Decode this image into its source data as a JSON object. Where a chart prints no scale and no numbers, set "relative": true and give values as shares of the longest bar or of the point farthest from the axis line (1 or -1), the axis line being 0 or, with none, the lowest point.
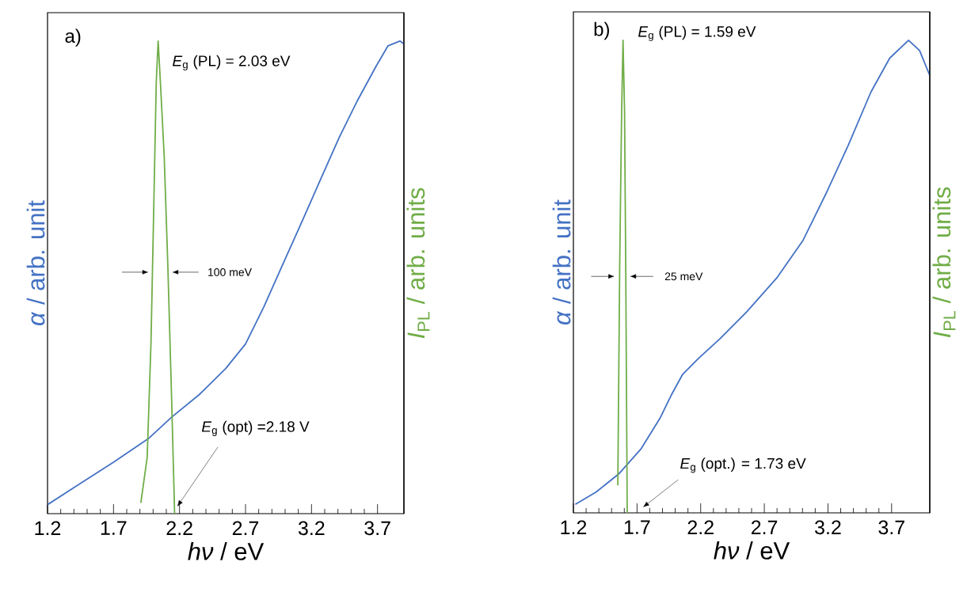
{
  "chart_data": [
    {
      "type": "line",
      "title": "a)",
      "xlabel": "*hν* / eV",
      "ylabel": "*α* / arb. unit",
      "y2label": "*I*$_{PL}$ / arb. units",
      "relative": true,
      "xlim": [
        1.2,
        3.9
      ],
      "xticks": [
        1.2,
        1.7,
        2.2,
        2.7,
        3.2,
        3.7
      ],
      "series": [
        {
          "color": "#4472c4",
          "x": [
            1.2,
            1.41,
            1.7,
            1.97,
            2.14,
            2.35,
            2.55,
            2.7,
            2.84,
            2.98,
            3.12,
            3.27,
            3.41,
            3.55,
            3.69,
            3.78,
            3.87,
            3.9
          ],
          "values": [
            0.019,
            0.057,
            0.109,
            0.16,
            0.204,
            0.252,
            0.307,
            0.359,
            0.438,
            0.526,
            0.613,
            0.708,
            0.796,
            0.875,
            0.947,
            0.99,
            1.0,
            0.994
          ]
        },
        {
          "color": "#70ad47",
          "axis": "y2",
          "x": [
            1.907,
            1.955,
            1.984,
            2.007,
            2.024,
            2.038,
            2.055,
            2.084,
            2.112,
            2.14,
            2.163
          ],
          "values": [
            0.023,
            0.119,
            0.363,
            0.678,
            0.914,
            1.0,
            0.914,
            0.756,
            0.52,
            0.245,
            0.0
          ]
        }
      ],
      "annotations": [
        "*E*$_{g}$ (PL) = 2.03 eV",
        "100 meV",
        "*E*$_{g}$ (opt) =2.18 V"
      ]
    },
    {
      "type": "line",
      "title": "b)",
      "xlabel": "*hν* / eV",
      "ylabel": "*α* / arb. unit",
      "y2label": "*I*$_{PL}$ / arb. units",
      "relative": true,
      "xlim": [
        1.2,
        4.0
      ],
      "xticks": [
        1.2,
        1.7,
        2.2,
        2.7,
        3.2,
        3.7
      ],
      "series": [
        {
          "color": "#4472c4",
          "x": [
            1.215,
            1.378,
            1.555,
            1.733,
            1.88,
            1.969,
            2.058,
            2.176,
            2.354,
            2.561,
            2.798,
            3.005,
            3.182,
            3.36,
            3.537,
            3.685,
            3.833,
            3.92,
            3.999
          ],
          "values": [
            0.018,
            0.044,
            0.082,
            0.136,
            0.2,
            0.249,
            0.293,
            0.325,
            0.369,
            0.425,
            0.497,
            0.577,
            0.674,
            0.778,
            0.89,
            0.962,
            1.0,
            0.978,
            0.926
          ]
        },
        {
          "color": "#70ad47",
          "axis": "y2",
          "x": [
            1.549,
            1.564,
            1.579,
            1.59,
            1.602,
            1.611,
            1.623
          ],
          "values": [
            0.058,
            0.528,
            0.848,
            1.0,
            0.848,
            0.528,
            0.0
          ]
        }
      ],
      "annotations": [
        "*E*$_{g}$ (PL) = 1.59 eV",
        "25 meV",
        "*E*$_{g}$ (opt.) = 1.73 eV"
      ]
    }
  ]
}
